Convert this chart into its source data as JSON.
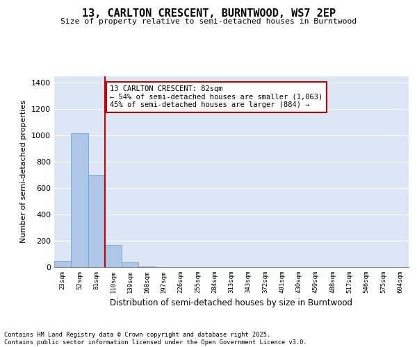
{
  "title_line1": "13, CARLTON CRESCENT, BURNTWOOD, WS7 2EP",
  "title_line2": "Size of property relative to semi-detached houses in Burntwood",
  "xlabel": "Distribution of semi-detached houses by size in Burntwood",
  "ylabel": "Number of semi-detached properties",
  "bin_labels": [
    "23sqm",
    "52sqm",
    "81sqm",
    "110sqm",
    "139sqm",
    "168sqm",
    "197sqm",
    "226sqm",
    "255sqm",
    "284sqm",
    "313sqm",
    "343sqm",
    "372sqm",
    "401sqm",
    "430sqm",
    "459sqm",
    "488sqm",
    "517sqm",
    "546sqm",
    "575sqm",
    "604sqm"
  ],
  "bar_values": [
    50,
    1020,
    700,
    170,
    35,
    5,
    0,
    0,
    0,
    0,
    0,
    0,
    0,
    0,
    0,
    0,
    0,
    0,
    0,
    0,
    0
  ],
  "bar_color": "#aec6e8",
  "bar_edge_color": "#5a9fd4",
  "property_line_bin": 2,
  "annotation_text_line1": "13 CARLTON CRESCENT: 82sqm",
  "annotation_text_line2": "← 54% of semi-detached houses are smaller (1,063)",
  "annotation_text_line3": "45% of semi-detached houses are larger (884) →",
  "ylim": [
    0,
    1450
  ],
  "yticks": [
    0,
    200,
    400,
    600,
    800,
    1000,
    1200,
    1400
  ],
  "annotation_box_color": "#ffffff",
  "annotation_box_edge": "#cc0000",
  "vline_color": "#cc0000",
  "background_color": "#dce6f5",
  "footer_line1": "Contains HM Land Registry data © Crown copyright and database right 2025.",
  "footer_line2": "Contains public sector information licensed under the Open Government Licence v3.0."
}
